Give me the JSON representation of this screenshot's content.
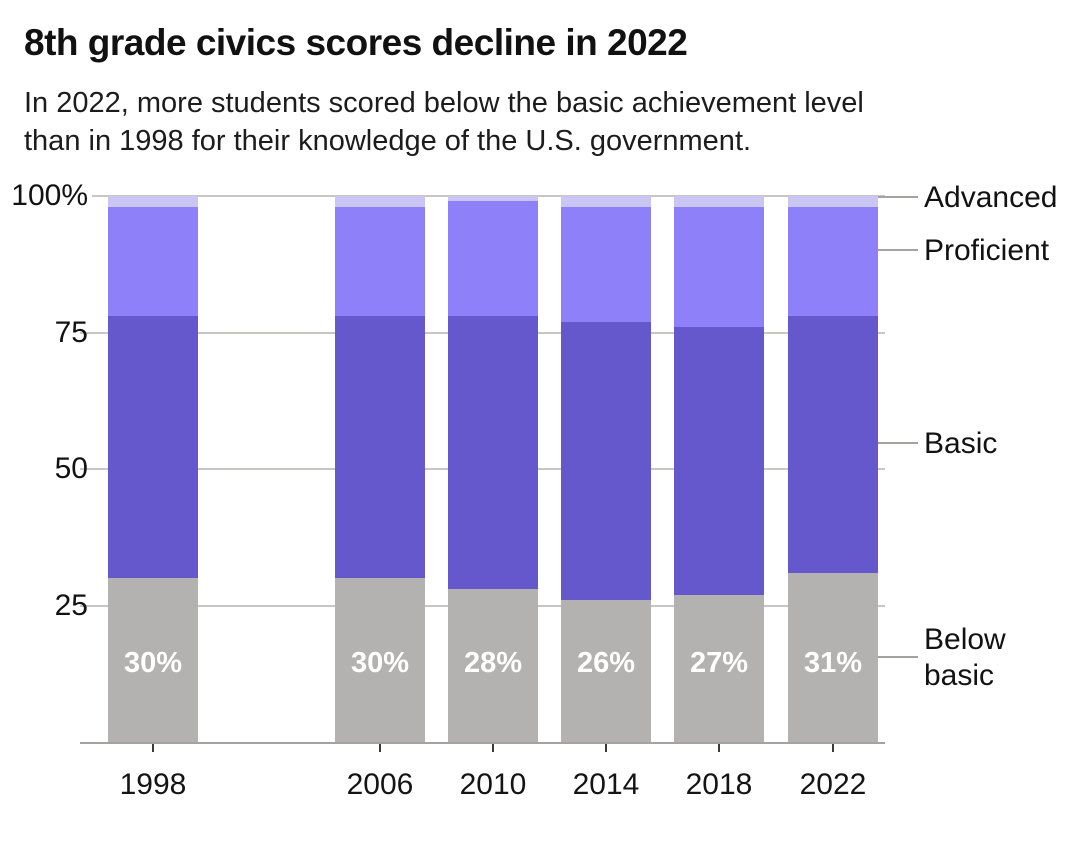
{
  "title": "8th grade civics scores decline in 2022",
  "subtitle": {
    "line1": "In 2022, more students scored below the basic achievement level",
    "line2": "than in 1998 for their knowledge of the U.S. government."
  },
  "chart_data": {
    "type": "bar",
    "variant": "stacked-100-percent-column",
    "categories": [
      "1998",
      "2006",
      "2010",
      "2014",
      "2018",
      "2022"
    ],
    "series": [
      {
        "name": "Below basic",
        "color": "#b4b2b1",
        "values": [
          30,
          30,
          28,
          26,
          27,
          31
        ]
      },
      {
        "name": "Basic",
        "color": "#6558cc",
        "values": [
          48,
          48,
          50,
          51,
          49,
          47
        ]
      },
      {
        "name": "Proficient",
        "color": "#8d80f8",
        "values": [
          20,
          20,
          21,
          21,
          22,
          20
        ]
      },
      {
        "name": "Advanced",
        "color": "#c9c6f4",
        "values": [
          2,
          2,
          1,
          2,
          2,
          2
        ]
      }
    ],
    "bar_labels": [
      "30%",
      "30%",
      "28%",
      "26%",
      "27%",
      "31%"
    ],
    "bar_labels_show_series": "Below basic",
    "y_axis": {
      "ticks": [
        "100%",
        "75",
        "50",
        "25"
      ],
      "tick_values": [
        100,
        75,
        50,
        25
      ],
      "range": [
        0,
        100
      ],
      "grid": true
    },
    "x_axis": {
      "note_missing_slot_between": [
        "1998",
        "2006"
      ]
    },
    "legend": {
      "position": "right",
      "labels": [
        "Advanced",
        "Proficient",
        "Basic",
        "Below basic"
      ]
    },
    "palette": {
      "grid_line": "#c9c5c1",
      "axis_line": "#a6a29e",
      "tick_mark": "#3a3a3a",
      "bar_value_text": "#ffffff",
      "text": "#121212"
    }
  }
}
